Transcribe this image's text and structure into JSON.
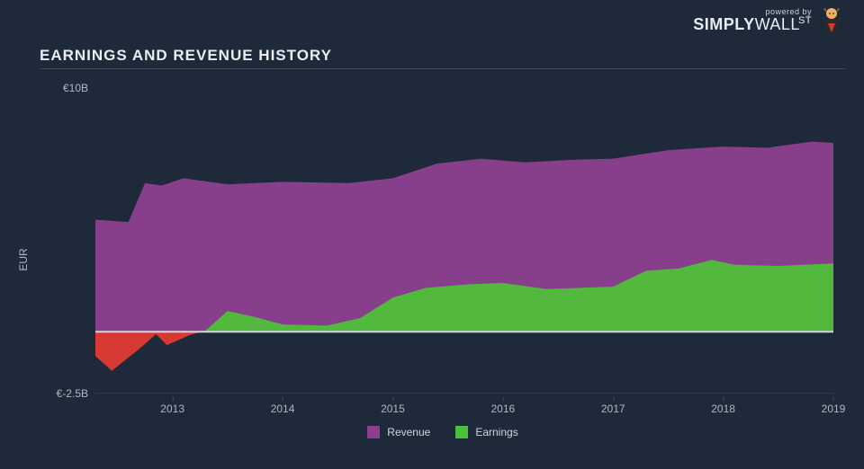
{
  "brand": {
    "powered": "powered by",
    "name_bold": "SIMPLY",
    "name_light": "WALL",
    "name_suffix": "ST",
    "logo_colors": {
      "head": "#f0b060",
      "body": "#2a2a2a",
      "tie": "#d03a2f",
      "horn": "#8a5a2a"
    }
  },
  "title": "EARNINGS AND REVENUE HISTORY",
  "chart": {
    "type": "area",
    "background_color": "#1e2a3a",
    "grid_color": "#2b3a4d",
    "text_color": "#aeb8c3",
    "title_fontsize": 17,
    "label_fontsize": 12,
    "ylabel": "EUR",
    "ylim": [
      -2.5,
      10
    ],
    "yticks": [
      {
        "v": 10,
        "label": "€10B"
      },
      {
        "v": -2.5,
        "label": "€-2.5B"
      }
    ],
    "xlim": [
      2012.3,
      2019.0
    ],
    "xticks": [
      {
        "v": 2013,
        "label": "2013"
      },
      {
        "v": 2014,
        "label": "2014"
      },
      {
        "v": 2015,
        "label": "2015"
      },
      {
        "v": 2016,
        "label": "2016"
      },
      {
        "v": 2017,
        "label": "2017"
      },
      {
        "v": 2018,
        "label": "2018"
      },
      {
        "v": 2019,
        "label": "2019"
      }
    ],
    "baseline": {
      "y": 0,
      "color": "#cfd6dd",
      "width": 2
    },
    "series": [
      {
        "key": "revenue",
        "label": "Revenue",
        "color": "#8d3f8f",
        "opacity": 0.95,
        "z": 1,
        "points": [
          {
            "x": 2012.3,
            "y": 4.6
          },
          {
            "x": 2012.6,
            "y": 4.5
          },
          {
            "x": 2012.75,
            "y": 6.1
          },
          {
            "x": 2012.9,
            "y": 6.0
          },
          {
            "x": 2013.1,
            "y": 6.3
          },
          {
            "x": 2013.5,
            "y": 6.05
          },
          {
            "x": 2014.0,
            "y": 6.15
          },
          {
            "x": 2014.6,
            "y": 6.1
          },
          {
            "x": 2015.0,
            "y": 6.3
          },
          {
            "x": 2015.4,
            "y": 6.9
          },
          {
            "x": 2015.8,
            "y": 7.1
          },
          {
            "x": 2016.2,
            "y": 6.95
          },
          {
            "x": 2016.6,
            "y": 7.05
          },
          {
            "x": 2017.0,
            "y": 7.1
          },
          {
            "x": 2017.5,
            "y": 7.45
          },
          {
            "x": 2018.0,
            "y": 7.6
          },
          {
            "x": 2018.4,
            "y": 7.55
          },
          {
            "x": 2018.8,
            "y": 7.8
          },
          {
            "x": 2019.0,
            "y": 7.75
          }
        ]
      },
      {
        "key": "earnings",
        "label": "Earnings",
        "color_pos": "#4fbf3a",
        "color_neg": "#e23b34",
        "opacity": 0.95,
        "z": 2,
        "points": [
          {
            "x": 2012.3,
            "y": -1.0
          },
          {
            "x": 2012.45,
            "y": -1.6
          },
          {
            "x": 2012.7,
            "y": -0.7
          },
          {
            "x": 2012.85,
            "y": -0.1
          },
          {
            "x": 2012.95,
            "y": -0.55
          },
          {
            "x": 2013.15,
            "y": -0.15
          },
          {
            "x": 2013.3,
            "y": 0.05
          },
          {
            "x": 2013.5,
            "y": 0.85
          },
          {
            "x": 2013.75,
            "y": 0.6
          },
          {
            "x": 2014.0,
            "y": 0.3
          },
          {
            "x": 2014.4,
            "y": 0.25
          },
          {
            "x": 2014.7,
            "y": 0.55
          },
          {
            "x": 2015.0,
            "y": 1.4
          },
          {
            "x": 2015.3,
            "y": 1.8
          },
          {
            "x": 2015.7,
            "y": 1.95
          },
          {
            "x": 2016.0,
            "y": 2.0
          },
          {
            "x": 2016.4,
            "y": 1.75
          },
          {
            "x": 2016.7,
            "y": 1.8
          },
          {
            "x": 2017.0,
            "y": 1.85
          },
          {
            "x": 2017.3,
            "y": 2.5
          },
          {
            "x": 2017.6,
            "y": 2.6
          },
          {
            "x": 2017.9,
            "y": 2.95
          },
          {
            "x": 2018.1,
            "y": 2.75
          },
          {
            "x": 2018.5,
            "y": 2.7
          },
          {
            "x": 2019.0,
            "y": 2.8
          }
        ]
      }
    ],
    "legend": [
      {
        "label": "Revenue",
        "color": "#8d3f8f"
      },
      {
        "label": "Earnings",
        "color": "#4fbf3a"
      }
    ]
  }
}
